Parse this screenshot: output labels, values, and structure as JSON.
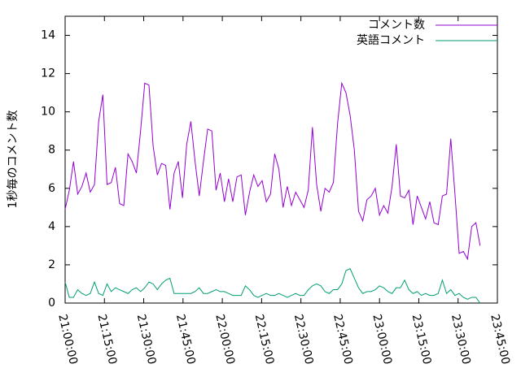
{
  "chart_data": {
    "type": "line",
    "y_label": "1秒毎のコメント数",
    "x": [
      "21:00:00",
      "21:01:36",
      "21:03:12",
      "21:04:48",
      "21:06:24",
      "21:08:00",
      "21:09:36",
      "21:11:12",
      "21:12:48",
      "21:14:24",
      "21:16:00",
      "21:17:36",
      "21:19:12",
      "21:20:48",
      "21:22:24",
      "21:24:00",
      "21:25:36",
      "21:27:12",
      "21:28:48",
      "21:30:24",
      "21:32:00",
      "21:33:36",
      "21:35:12",
      "21:36:48",
      "21:38:24",
      "21:40:00",
      "21:41:36",
      "21:43:12",
      "21:44:48",
      "21:46:24",
      "21:48:00",
      "21:49:36",
      "21:51:12",
      "21:52:48",
      "21:54:24",
      "21:56:00",
      "21:57:36",
      "21:59:12",
      "22:00:48",
      "22:02:24",
      "22:04:00",
      "22:05:36",
      "22:07:12",
      "22:08:48",
      "22:10:24",
      "22:12:00",
      "22:13:36",
      "22:15:12",
      "22:16:48",
      "22:18:24",
      "22:20:00",
      "22:21:36",
      "22:23:12",
      "22:24:48",
      "22:26:24",
      "22:28:00",
      "22:29:36",
      "22:31:12",
      "22:32:48",
      "22:34:24",
      "22:36:00",
      "22:37:36",
      "22:39:12",
      "22:40:48",
      "22:42:24",
      "22:44:00",
      "22:45:36",
      "22:47:12",
      "22:48:48",
      "22:50:24",
      "22:52:00",
      "22:53:36",
      "22:55:12",
      "22:56:48",
      "22:58:24",
      "23:00:00",
      "23:01:36",
      "23:03:12",
      "23:04:48",
      "23:06:24",
      "23:08:00",
      "23:09:36",
      "23:11:12",
      "23:12:48",
      "23:14:24",
      "23:16:00",
      "23:17:36",
      "23:19:12",
      "23:20:48",
      "23:22:24",
      "23:24:00",
      "23:25:36",
      "23:27:12",
      "23:28:48",
      "23:30:24",
      "23:32:00",
      "23:33:36",
      "23:35:12",
      "23:36:48",
      "23:38:24"
    ],
    "series": [
      {
        "name": "コメント数",
        "color": "#9400d3",
        "values": [
          4.9,
          5.9,
          7.4,
          5.7,
          6.1,
          6.8,
          5.8,
          6.2,
          9.5,
          10.9,
          6.2,
          6.3,
          7.1,
          5.2,
          5.1,
          7.8,
          7.4,
          6.8,
          9.0,
          11.5,
          11.4,
          8.2,
          6.7,
          7.3,
          7.2,
          4.9,
          6.8,
          7.4,
          5.5,
          8.3,
          9.5,
          7.4,
          5.6,
          7.4,
          9.1,
          9.0,
          5.9,
          6.8,
          5.3,
          6.5,
          5.3,
          6.6,
          6.7,
          4.6,
          5.8,
          6.7,
          6.1,
          6.4,
          5.3,
          5.7,
          7.8,
          7.0,
          5.0,
          6.1,
          5.1,
          5.8,
          5.4,
          5.0,
          5.9,
          9.2,
          6.2,
          4.8,
          6.0,
          5.8,
          6.3,
          9.4,
          11.5,
          11.0,
          9.8,
          8.0,
          4.8,
          4.3,
          5.4,
          5.6,
          6.0,
          4.6,
          5.1,
          4.7,
          6.1,
          8.3,
          5.6,
          5.5,
          5.9,
          4.1,
          5.6,
          5.0,
          4.4,
          5.3,
          4.2,
          4.1,
          5.6,
          5.7,
          8.6,
          5.7,
          2.6,
          2.7,
          2.3,
          4.0,
          4.2,
          3.0
        ]
      },
      {
        "name": "英語コメント",
        "color": "#009e73",
        "values": [
          1.1,
          0.3,
          0.3,
          0.7,
          0.5,
          0.4,
          0.5,
          1.1,
          0.5,
          0.4,
          1.0,
          0.6,
          0.8,
          0.7,
          0.6,
          0.5,
          0.7,
          0.8,
          0.6,
          0.8,
          1.1,
          1.0,
          0.7,
          1.0,
          1.2,
          1.3,
          0.5,
          0.5,
          0.5,
          0.5,
          0.5,
          0.6,
          0.8,
          0.5,
          0.5,
          0.6,
          0.7,
          0.6,
          0.6,
          0.5,
          0.4,
          0.4,
          0.4,
          0.9,
          0.7,
          0.4,
          0.3,
          0.4,
          0.5,
          0.4,
          0.4,
          0.5,
          0.4,
          0.3,
          0.4,
          0.5,
          0.4,
          0.4,
          0.7,
          0.9,
          1.0,
          0.9,
          0.6,
          0.5,
          0.7,
          0.7,
          1.0,
          1.7,
          1.8,
          1.3,
          0.8,
          0.5,
          0.6,
          0.6,
          0.7,
          0.9,
          0.8,
          0.6,
          0.5,
          0.8,
          0.8,
          1.2,
          0.7,
          0.5,
          0.6,
          0.4,
          0.5,
          0.4,
          0.4,
          0.5,
          1.2,
          0.5,
          0.7,
          0.4,
          0.5,
          0.3,
          0.2,
          0.3,
          0.3,
          0.0
        ]
      }
    ],
    "xlim": [
      "21:00:00",
      "23:45:00"
    ],
    "xticks": [
      "21:00:00",
      "21:15:00",
      "21:30:00",
      "21:45:00",
      "22:00:00",
      "22:15:00",
      "22:30:00",
      "22:45:00",
      "23:00:00",
      "23:15:00",
      "23:30:00",
      "23:45:00"
    ],
    "ylim": [
      0,
      15
    ],
    "yticks": [
      0,
      2,
      4,
      6,
      8,
      10,
      12,
      14
    ],
    "legend": "top-right"
  }
}
